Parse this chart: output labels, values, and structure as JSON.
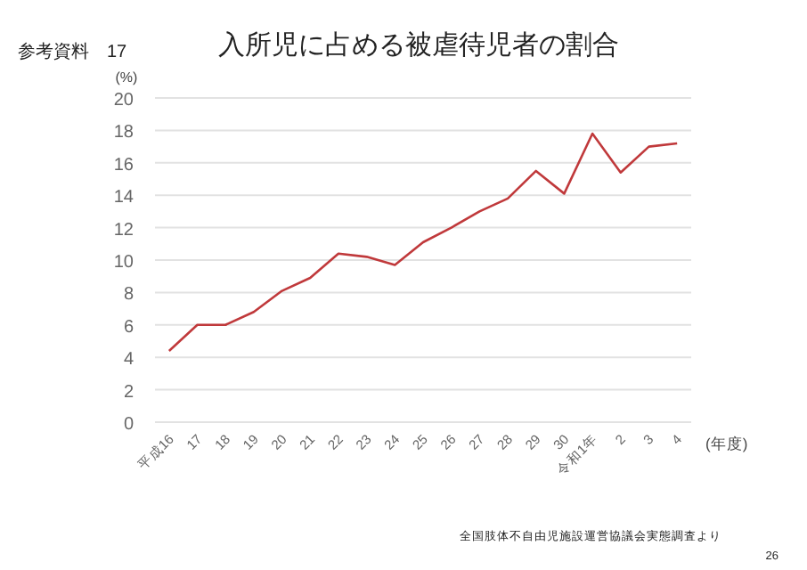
{
  "chart_data": {
    "type": "line",
    "title": "入所児に占める被虐待児者の割合",
    "ylabel": "(%)",
    "xlabel": "(年度)",
    "annotations": [
      "参考資料　17",
      "全国肢体不自由児施設運営協議会実態調査より",
      "26"
    ],
    "categories": [
      "平成16",
      "17",
      "18",
      "19",
      "20",
      "21",
      "22",
      "23",
      "24",
      "25",
      "26",
      "27",
      "28",
      "29",
      "30",
      "令和1年",
      "2",
      "3",
      "4"
    ],
    "series": [
      {
        "color": "#c0393b",
        "values": [
          4.4,
          6.0,
          6.0,
          6.8,
          8.1,
          8.9,
          10.4,
          10.2,
          9.7,
          11.1,
          12.0,
          13.0,
          13.8,
          15.5,
          14.1,
          17.8,
          15.4,
          17.0,
          17.2
        ]
      }
    ],
    "ylim": [
      0,
      20
    ],
    "yticks": [
      0,
      2,
      4,
      6,
      8,
      10,
      12,
      14,
      16,
      18,
      20
    ],
    "grid": "y",
    "marker": "none",
    "line_style": "solid"
  }
}
